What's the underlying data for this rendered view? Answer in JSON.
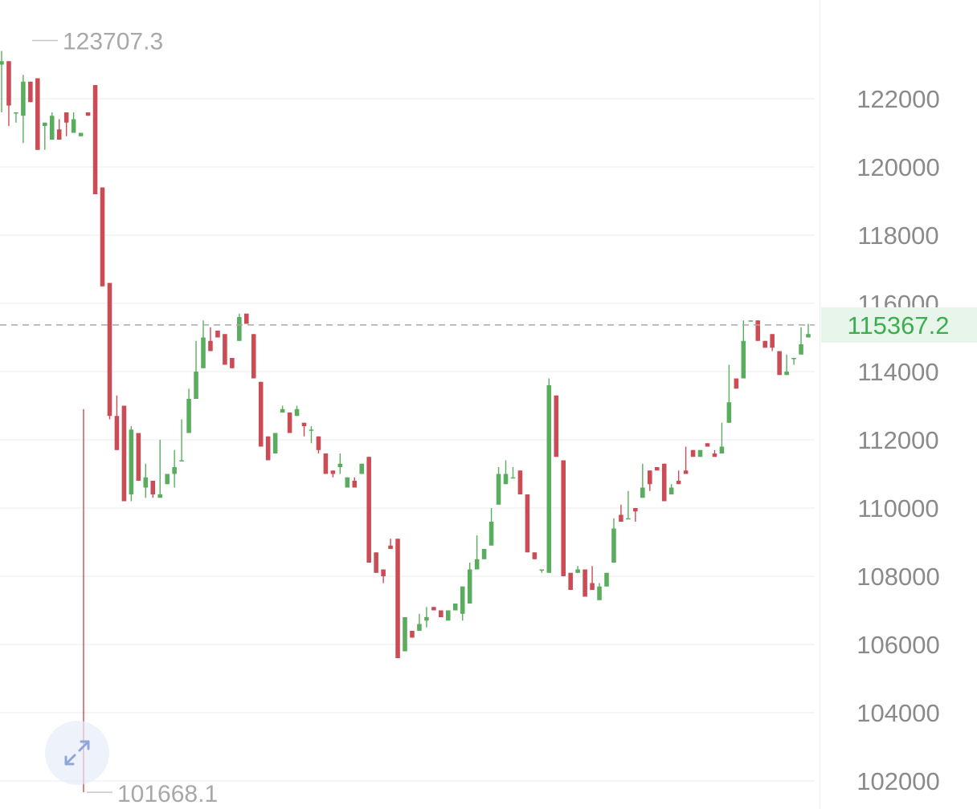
{
  "chart_data": {
    "type": "candlestick",
    "y_range": [
      101200,
      124600
    ],
    "y_ticks": [
      "122000",
      "120000",
      "118000",
      "116000",
      "114000",
      "112000",
      "110000",
      "108000",
      "106000",
      "104000",
      "102000"
    ],
    "current_price": 115367.2,
    "current_price_label": "115367.2",
    "max_label": "123707.3",
    "min_label": "101668.1",
    "high_point": 123707.3,
    "low_point": 101668.1,
    "candles": [
      [
        123000,
        123400,
        121600,
        123100
      ],
      [
        123100,
        121600,
        121200,
        121800
      ],
      [
        121600,
        121400,
        121300,
        121600
      ],
      [
        121500,
        122700,
        120700,
        122500
      ],
      [
        122500,
        121800,
        122500,
        121900
      ],
      [
        122600,
        120600,
        122500,
        120500
      ],
      [
        121200,
        120900,
        120500,
        121300
      ],
      [
        120800,
        121600,
        120900,
        121500
      ],
      [
        121100,
        121400,
        120900,
        120800
      ],
      [
        121600,
        121000,
        120900,
        121300
      ],
      [
        121000,
        121600,
        121000,
        121400
      ],
      [
        120900,
        120900,
        120900,
        121000
      ],
      [
        121600,
        121100,
        121500,
        121500
      ],
      [
        122400,
        119300,
        121200,
        119200
      ],
      [
        119400,
        116600,
        118400,
        116500
      ],
      [
        116600,
        112900,
        112600,
        112700
      ],
      [
        112700,
        113300,
        111700,
        111700
      ],
      [
        113000,
        110500,
        110300,
        110200
      ],
      [
        110400,
        112400,
        110200,
        112300
      ],
      [
        112200,
        111000,
        110800,
        110800
      ],
      [
        110600,
        111300,
        110300,
        110900
      ],
      [
        110800,
        110800,
        110300,
        110400
      ],
      [
        110300,
        112000,
        110700,
        110400
      ],
      [
        110700,
        111000,
        111100,
        111000
      ],
      [
        111000,
        111700,
        110600,
        111200
      ],
      [
        111400,
        112600,
        111500,
        111400
      ],
      [
        112200,
        113500,
        112400,
        113200
      ],
      [
        113200,
        114900,
        114000,
        114000
      ],
      [
        114100,
        115500,
        115000,
        115000
      ],
      [
        114900,
        115300,
        114900,
        114600
      ],
      [
        115200,
        114900,
        115300,
        115000
      ],
      [
        115100,
        114400,
        114400,
        114200
      ],
      [
        114400,
        113800,
        114300,
        114100
      ],
      [
        114900,
        115700,
        115600,
        115600
      ],
      [
        115700,
        115000,
        115700,
        115400
      ],
      [
        115100,
        113300,
        114500,
        113800
      ],
      [
        113700,
        112700,
        112100,
        111800
      ],
      [
        112100,
        111800,
        111600,
        111400
      ],
      [
        111600,
        111400,
        112100,
        112200
      ],
      [
        112800,
        113000,
        112800,
        112900
      ],
      [
        112800,
        112100,
        112200,
        112200
      ],
      [
        112700,
        113000,
        112900,
        112900
      ],
      [
        112500,
        111900,
        112100,
        112400
      ],
      [
        112300,
        112400,
        111900,
        112300
      ],
      [
        112100,
        111100,
        111600,
        111700
      ],
      [
        111600,
        110800,
        111000,
        111000
      ],
      [
        111100,
        110900,
        110900,
        111000
      ],
      [
        111200,
        111600,
        111000,
        111300
      ],
      [
        110600,
        110900,
        110800,
        110900
      ],
      [
        110800,
        110900,
        110600,
        110600
      ],
      [
        111000,
        110600,
        111300,
        111300
      ],
      [
        111500,
        108600,
        109300,
        108400
      ],
      [
        108700,
        107900,
        108200,
        108100
      ],
      [
        108200,
        107600,
        107800,
        108000
      ],
      [
        108900,
        109100,
        108800,
        108800
      ],
      [
        109100,
        105600,
        105700,
        105600
      ],
      [
        105800,
        106600,
        106900,
        106800
      ],
      [
        106400,
        106100,
        106300,
        106200
      ],
      [
        106400,
        106900,
        106600,
        106600
      ],
      [
        106700,
        107100,
        106500,
        106800
      ],
      [
        107100,
        107000,
        107200,
        107000
      ],
      [
        107000,
        106600,
        106900,
        106800
      ],
      [
        106700,
        107000,
        107100,
        107000
      ],
      [
        107000,
        107200,
        107100,
        107200
      ],
      [
        106900,
        107600,
        106700,
        107700
      ],
      [
        107200,
        108400,
        107500,
        108200
      ],
      [
        108200,
        109200,
        108500,
        108500
      ],
      [
        108500,
        108700,
        109300,
        108800
      ],
      [
        108900,
        110000,
        109600,
        109600
      ],
      [
        110100,
        111200,
        110900,
        111000
      ],
      [
        110700,
        111400,
        111100,
        111000
      ],
      [
        110900,
        111200,
        110900,
        110900
      ],
      [
        111100,
        110300,
        110700,
        110400
      ],
      [
        110400,
        108900,
        110200,
        108700
      ],
      [
        108700,
        108300,
        109000,
        108500
      ],
      [
        108200,
        107800,
        108100,
        108200
      ],
      [
        108100,
        113800,
        113500,
        113600
      ],
      [
        113300,
        111200,
        111800,
        111500
      ],
      [
        111400,
        108200,
        108300,
        108000
      ],
      [
        108100,
        107800,
        107700,
        107600
      ],
      [
        108100,
        108300,
        108200,
        108200
      ],
      [
        108200,
        107500,
        107600,
        107400
      ],
      [
        107800,
        108300,
        107800,
        107600
      ],
      [
        107300,
        107800,
        107700,
        107700
      ],
      [
        107700,
        108000,
        108300,
        108100
      ],
      [
        108400,
        109700,
        109600,
        109400
      ],
      [
        109800,
        110100,
        109800,
        109600
      ],
      [
        109700,
        110500,
        109700,
        109700
      ],
      [
        110000,
        110000,
        109600,
        109900
      ],
      [
        110300,
        111300,
        110900,
        110600
      ],
      [
        111100,
        110300,
        110500,
        110700
      ],
      [
        111200,
        110400,
        111400,
        111100
      ],
      [
        111300,
        110100,
        110300,
        110200
      ],
      [
        110400,
        110700,
        110600,
        110600
      ],
      [
        110800,
        111100,
        110900,
        110700
      ],
      [
        111100,
        111800,
        111300,
        111000
      ],
      [
        111700,
        111400,
        111700,
        111500
      ],
      [
        111500,
        111700,
        111600,
        111700
      ],
      [
        111900,
        111700,
        112100,
        111800
      ],
      [
        111600,
        111700,
        111600,
        111500
      ],
      [
        111600,
        112500,
        112000,
        111800
      ],
      [
        112500,
        114200,
        113200,
        113100
      ],
      [
        113800,
        113500,
        113800,
        113500
      ],
      [
        113800,
        115500,
        114900,
        114900
      ],
      [
        115500,
        115500,
        115500,
        115500
      ],
      [
        115500,
        114800,
        115100,
        114900
      ],
      [
        114900,
        114800,
        114800,
        114700
      ],
      [
        115100,
        114700,
        114600,
        114700
      ],
      [
        114600,
        113800,
        114000,
        113900
      ],
      [
        113900,
        114500,
        114100,
        114000
      ],
      [
        114400,
        114200,
        114200,
        114400
      ],
      [
        114500,
        115300,
        114900,
        114800
      ],
      [
        115000,
        115400,
        115200,
        115100
      ]
    ]
  }
}
